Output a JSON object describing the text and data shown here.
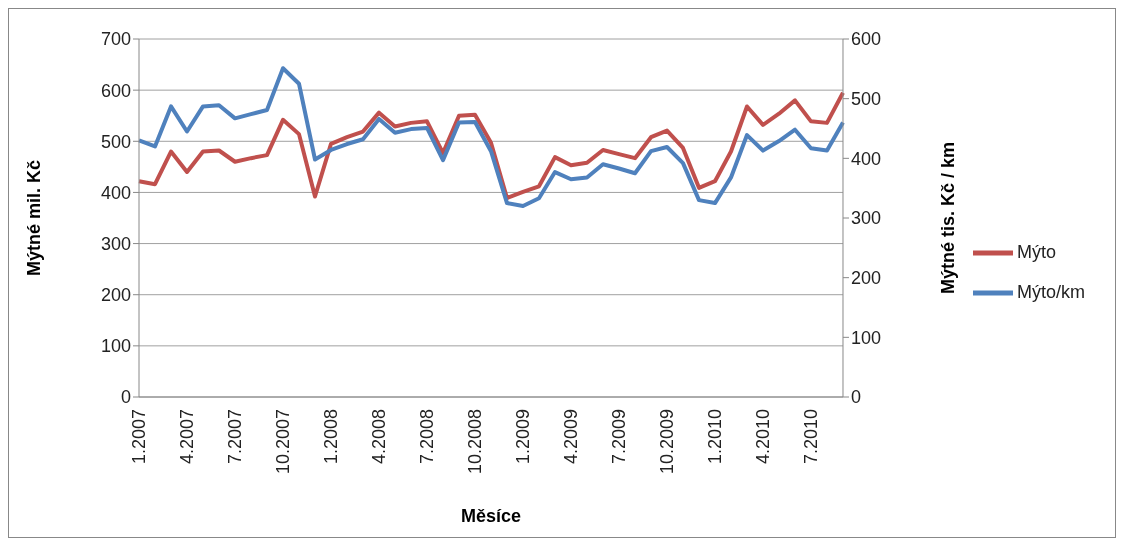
{
  "chart_data": {
    "type": "line",
    "xlabel": "Měsíce",
    "ylabel": "Mýtné mil. Kč",
    "y2label": "Mýtné tis. Kč / km",
    "categories": [
      "1.2007",
      null,
      null,
      "4.2007",
      null,
      null,
      "7.2007",
      null,
      null,
      "10.2007",
      null,
      null,
      "1.2008",
      null,
      null,
      "4.2008",
      null,
      null,
      "7.2008",
      null,
      null,
      "10.2008",
      null,
      null,
      "1.2009",
      null,
      null,
      "4.2009",
      null,
      null,
      "7.2009",
      null,
      null,
      "10.2009",
      null,
      null,
      "1.2010",
      null,
      null,
      "4.2010",
      null,
      null,
      "7.2010",
      null,
      null
    ],
    "series": [
      {
        "name": "Mýto",
        "color": "#c0504d",
        "values": [
          422,
          416,
          480,
          440,
          480,
          482,
          460,
          467,
          473,
          542,
          514,
          392,
          495,
          508,
          519,
          556,
          529,
          536,
          539,
          477,
          550,
          552,
          497,
          389,
          401,
          412,
          469,
          453,
          458,
          483,
          475,
          467,
          508,
          521,
          487,
          409,
          422,
          480,
          568,
          532,
          554,
          580,
          539,
          536,
          595
        ]
      },
      {
        "name": "Mýto/km",
        "color": "#4f81bd",
        "axis": "y2",
        "values": [
          430,
          420,
          487,
          445,
          487,
          489,
          467,
          474,
          481,
          551,
          525,
          398,
          414,
          424,
          432,
          466,
          443,
          449,
          451,
          397,
          460,
          461,
          412,
          325,
          320,
          333,
          377,
          365,
          368,
          390,
          383,
          375,
          412,
          419,
          392,
          330,
          325,
          368,
          439,
          413,
          429,
          448,
          417,
          413,
          460
        ]
      }
    ],
    "ylim": [
      0,
      700
    ],
    "yticks": [
      0,
      100,
      200,
      300,
      400,
      500,
      600,
      700
    ],
    "y2lim": [
      0,
      600
    ],
    "y2ticks": [
      0,
      100,
      200,
      300,
      400,
      500,
      600
    ],
    "grid": "y",
    "legend": "right",
    "marker": "none",
    "line_style": "solid"
  }
}
